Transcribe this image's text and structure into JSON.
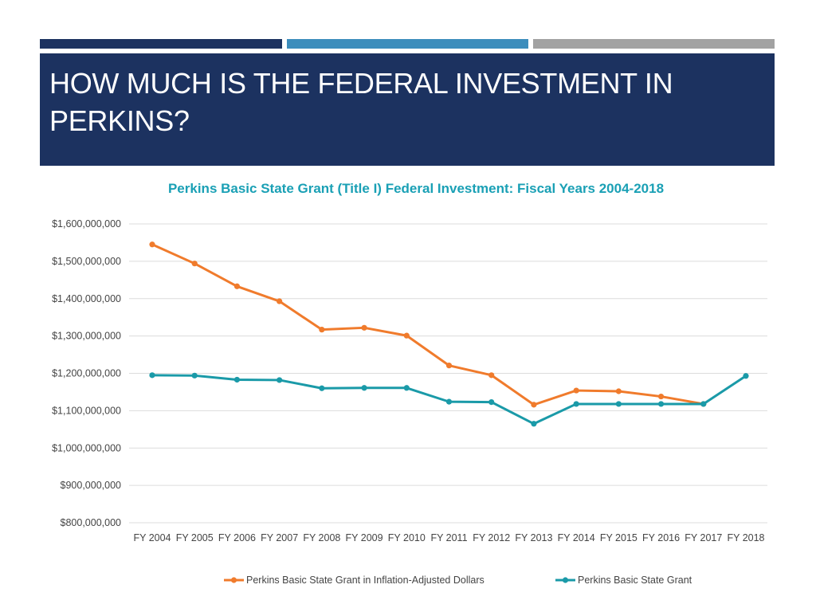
{
  "slide": {
    "title": "HOW MUCH IS THE FEDERAL INVESTMENT IN PERKINS?",
    "title_bg": "#1c3260",
    "accent_colors": [
      "#1c3260",
      "#3c8dbc",
      "#a2a2a2"
    ]
  },
  "chart_data": {
    "type": "line",
    "title": "Perkins Basic State Grant (Title I) Federal Investment: Fiscal Years 2004-2018",
    "title_color": "#1aa0b5",
    "categories": [
      "FY 2004",
      "FY 2005",
      "FY 2006",
      "FY 2007",
      "FY 2008",
      "FY 2009",
      "FY 2010",
      "FY 2011",
      "FY 2012",
      "FY 2013",
      "FY 2014",
      "FY 2015",
      "FY 2016",
      "FY 2017",
      "FY 2018"
    ],
    "ylim": [
      800000000,
      1600000000
    ],
    "y_ticks": [
      800000000,
      900000000,
      1000000000,
      1100000000,
      1200000000,
      1300000000,
      1400000000,
      1500000000,
      1600000000
    ],
    "y_tick_labels": [
      "$800,000,000",
      "$900,000,000",
      "$1,000,000,000",
      "$1,100,000,000",
      "$1,200,000,000",
      "$1,300,000,000",
      "$1,400,000,000",
      "$1,500,000,000",
      "$1,600,000,000"
    ],
    "grid": true,
    "legend_position": "bottom",
    "series": [
      {
        "name": "Perkins Basic State Grant in Inflation-Adjusted Dollars",
        "color": "#f07b2c",
        "values": [
          1545000000,
          1494000000,
          1433000000,
          1393000000,
          1317000000,
          1322000000,
          1301000000,
          1221000000,
          1195000000,
          1116000000,
          1154000000,
          1152000000,
          1138000000,
          1118000000,
          null
        ]
      },
      {
        "name": "Perkins Basic State Grant",
        "color": "#1a9aa8",
        "values": [
          1195000000,
          1194000000,
          1183000000,
          1182000000,
          1160000000,
          1161000000,
          1161000000,
          1124000000,
          1123000000,
          1065000000,
          1118000000,
          1118000000,
          1118000000,
          1118000000,
          1193000000
        ]
      }
    ]
  }
}
